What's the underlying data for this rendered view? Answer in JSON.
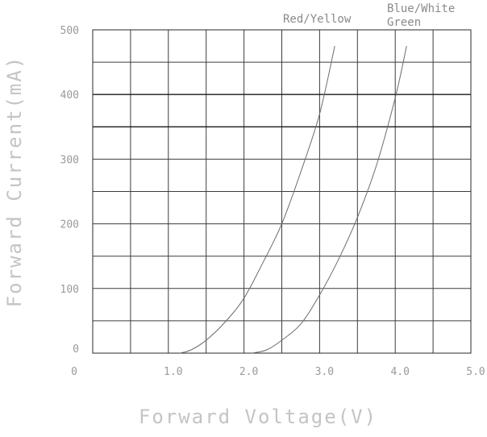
{
  "chart_data": {
    "type": "line",
    "title": "",
    "xlabel": "Forward Voltage(V)",
    "ylabel": "Forward Current(mA)",
    "xlim": [
      0,
      5.0
    ],
    "ylim": [
      0,
      500
    ],
    "grid": true,
    "x_ticks": [
      {
        "value": 0,
        "label": "0"
      },
      {
        "value": 1.0,
        "label": "1.0"
      },
      {
        "value": 2.0,
        "label": "2.0"
      },
      {
        "value": 3.0,
        "label": "3.0"
      },
      {
        "value": 4.0,
        "label": "4.0"
      },
      {
        "value": 5.0,
        "label": "5.0"
      }
    ],
    "y_ticks": [
      {
        "value": 0,
        "label": "0"
      },
      {
        "value": 100,
        "label": "100"
      },
      {
        "value": 200,
        "label": "200"
      },
      {
        "value": 300,
        "label": "300"
      },
      {
        "value": 400,
        "label": "400"
      },
      {
        "value": 500,
        "label": "500"
      }
    ],
    "series": [
      {
        "name": "Red/Yellow",
        "x": [
          1.15,
          1.3,
          1.5,
          1.75,
          2.0,
          2.25,
          2.5,
          2.75,
          3.0,
          3.2
        ],
        "y": [
          0,
          5,
          20,
          48,
          85,
          140,
          200,
          280,
          370,
          475
        ]
      },
      {
        "name": "Blue/White Green",
        "x": [
          2.1,
          2.3,
          2.5,
          2.75,
          3.0,
          3.25,
          3.5,
          3.75,
          4.0,
          4.15
        ],
        "y": [
          0,
          5,
          20,
          45,
          90,
          145,
          210,
          290,
          395,
          475
        ]
      }
    ],
    "series_labels": [
      {
        "lines": [
          "Red/Yellow"
        ]
      },
      {
        "lines": [
          "Blue/White",
          "Green"
        ]
      }
    ]
  }
}
